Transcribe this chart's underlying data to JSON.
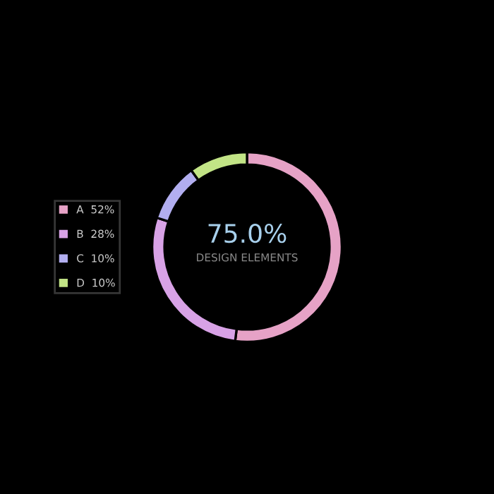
{
  "chart_data": {
    "type": "donut",
    "categories": [
      "A",
      "B",
      "C",
      "D"
    ],
    "values": [
      52,
      28,
      10,
      10
    ],
    "value_labels": [
      "52%",
      "28%",
      "10%",
      "10%"
    ],
    "colors": [
      "#e6a2c6",
      "#d8a2e6",
      "#b2aef0",
      "#c2e486"
    ],
    "annotations": [
      "75.0%",
      "DESIGN ELEMENTS"
    ],
    "legend": "left"
  }
}
